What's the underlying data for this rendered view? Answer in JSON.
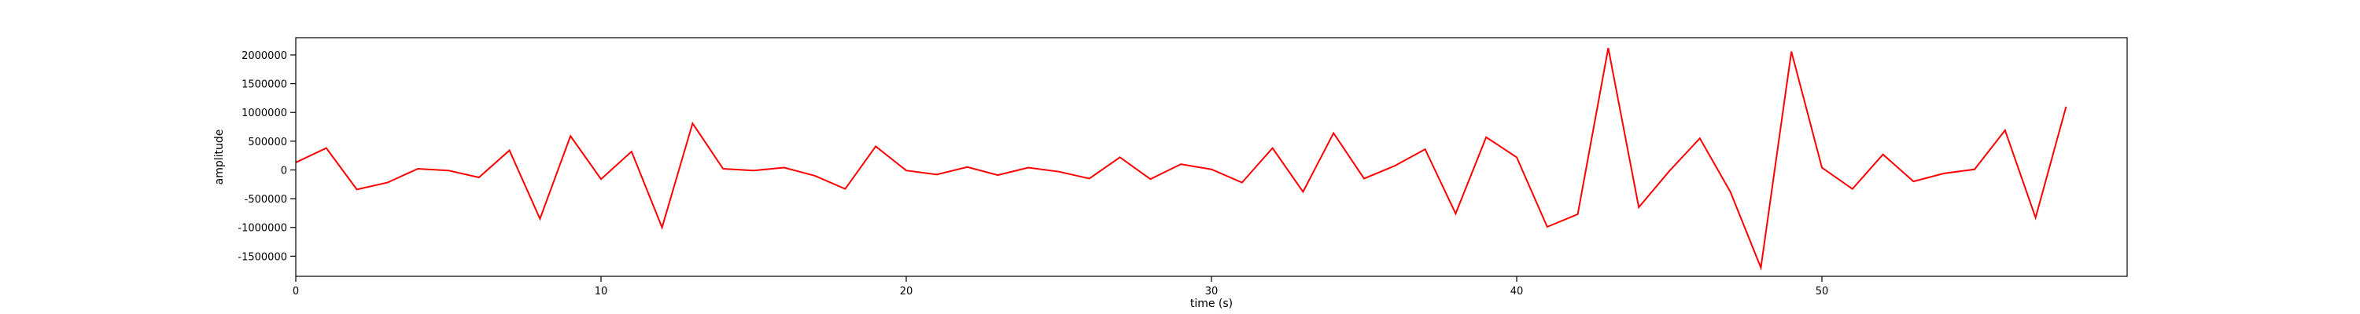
{
  "chart_data": {
    "type": "line",
    "title": "",
    "xlabel": "time (s)",
    "ylabel": "amplitude",
    "xlim": [
      0,
      60
    ],
    "ylim": [
      -1850000,
      2300000
    ],
    "xticks": [
      0,
      10,
      20,
      30,
      40,
      50
    ],
    "yticks": [
      -1500000,
      -1000000,
      -500000,
      0,
      500000,
      1000000,
      1500000,
      2000000
    ],
    "grid": false,
    "legend": "none",
    "series": [
      {
        "color": "#ff0000",
        "x": [
          0,
          1,
          2,
          3,
          4,
          5,
          6,
          7,
          8,
          9,
          10,
          11,
          12,
          13,
          14,
          15,
          16,
          17,
          18,
          19,
          20,
          21,
          22,
          23,
          24,
          25,
          26,
          27,
          28,
          29,
          30,
          31,
          32,
          33,
          34,
          35,
          36,
          37,
          38,
          39,
          40,
          41,
          42,
          43,
          44,
          45,
          46,
          47,
          48,
          49,
          50,
          51,
          52,
          53,
          54,
          55,
          56,
          57,
          58
        ],
        "y": [
          130000,
          380000,
          -340000,
          -220000,
          20000,
          -10000,
          -130000,
          340000,
          -850000,
          590000,
          -160000,
          320000,
          -1000000,
          810000,
          20000,
          -10000,
          40000,
          -100000,
          -330000,
          410000,
          -10000,
          -80000,
          50000,
          -90000,
          40000,
          -30000,
          -150000,
          220000,
          -160000,
          100000,
          10000,
          -220000,
          380000,
          -380000,
          640000,
          -150000,
          70000,
          360000,
          -760000,
          570000,
          220000,
          -990000,
          -770000,
          2120000,
          -650000,
          -20000,
          550000,
          -380000,
          -1700000,
          2060000,
          40000,
          -330000,
          270000,
          -200000,
          -60000,
          10000,
          690000,
          -830000,
          1100000
        ]
      }
    ]
  }
}
